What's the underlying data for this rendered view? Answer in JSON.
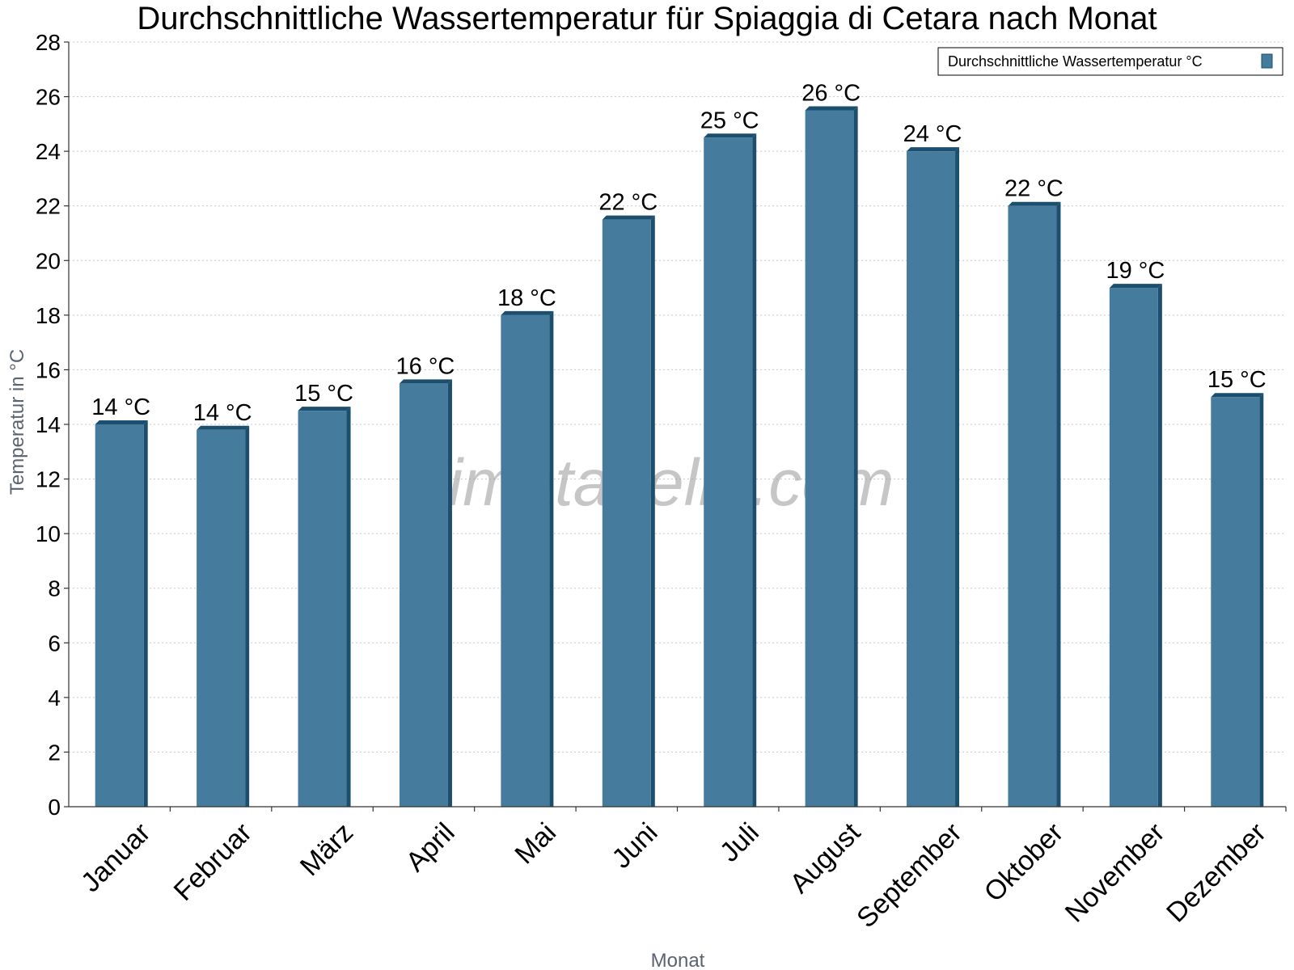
{
  "chart_data": {
    "type": "bar",
    "title": "Durchschnittliche Wassertemperatur für Spiaggia di Cetara nach Monat",
    "xlabel": "Monat",
    "ylabel": "Temperatur in °C",
    "categories": [
      "Januar",
      "Februar",
      "März",
      "April",
      "Mai",
      "Juni",
      "Juli",
      "August",
      "September",
      "Oktober",
      "November",
      "Dezember"
    ],
    "series": [
      {
        "name": "Durchschnittliche Wassertemperatur °C",
        "color": "#457b9d",
        "values": [
          14,
          13.8,
          14.5,
          15.5,
          18,
          21.5,
          24.5,
          25.5,
          24,
          22,
          19,
          15
        ],
        "labels": [
          "14 °C",
          "14 °C",
          "15 °C",
          "16 °C",
          "18 °C",
          "22 °C",
          "25 °C",
          "26 °C",
          "24 °C",
          "22 °C",
          "19 °C",
          "15 °C"
        ]
      }
    ],
    "ylim": [
      0,
      28
    ],
    "yticks": [
      0,
      2,
      4,
      6,
      8,
      10,
      12,
      14,
      16,
      18,
      20,
      22,
      24,
      26,
      28
    ],
    "grid": true,
    "legend_position": "top-right"
  },
  "watermark": "klimatabelle.com",
  "colors": {
    "bar": "#457b9d",
    "bar_edge": "#1c4e6e"
  }
}
